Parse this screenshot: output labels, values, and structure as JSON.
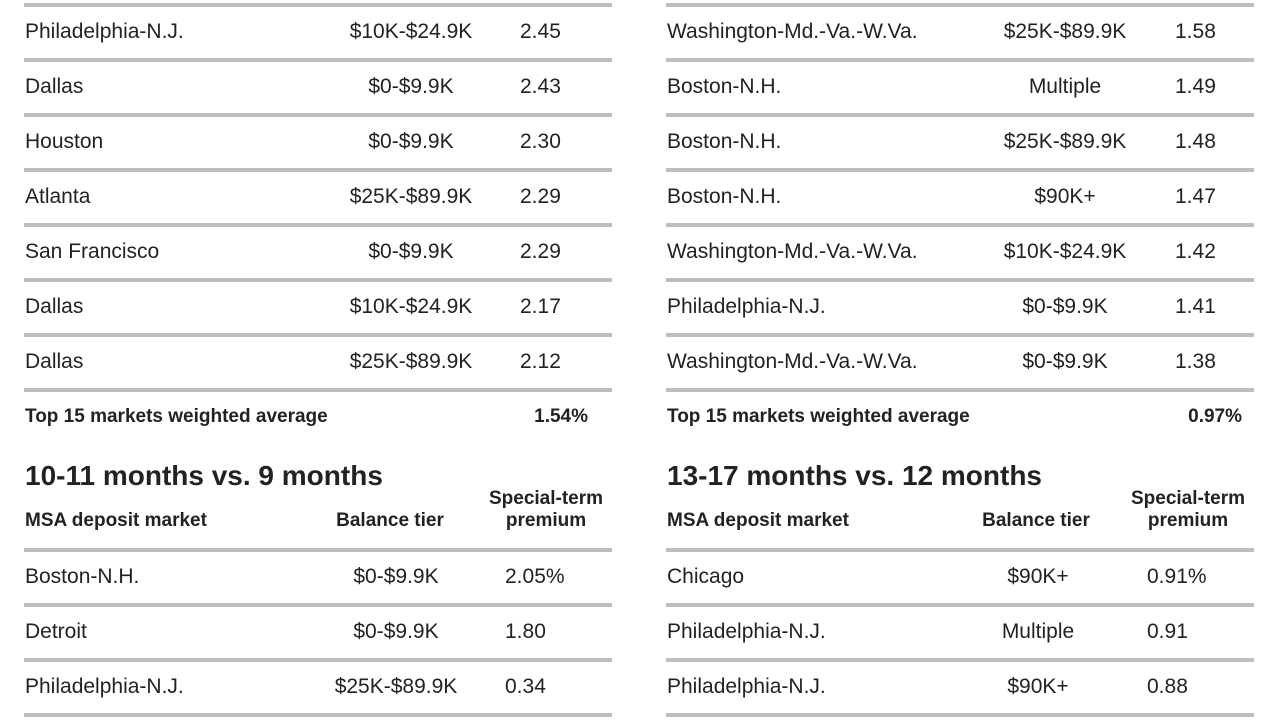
{
  "left": {
    "top_rows": [
      [
        "Philadelphia-N.J.",
        "$10K-$24.9K",
        "2.45"
      ],
      [
        "Dallas",
        "$0-$9.9K",
        "2.43"
      ],
      [
        "Houston",
        "$0-$9.9K",
        "2.30"
      ],
      [
        "Atlanta",
        "$25K-$89.9K",
        "2.29"
      ],
      [
        "San Francisco",
        "$0-$9.9K",
        "2.29"
      ],
      [
        "Dallas",
        "$10K-$24.9K",
        "2.17"
      ],
      [
        "Dallas",
        "$25K-$89.9K",
        "2.12"
      ]
    ],
    "summary": {
      "label": "Top 15 markets weighted average",
      "value": "1.54%"
    },
    "section": {
      "title": "10-11 months vs. 9 months",
      "headers": [
        "MSA deposit market",
        "Balance tier",
        "Special-term premium"
      ],
      "rows": [
        [
          "Boston-N.H.",
          "$0-$9.9K",
          "2.05%"
        ],
        [
          "Detroit",
          "$0-$9.9K",
          "1.80"
        ],
        [
          "Philadelphia-N.J.",
          "$25K-$89.9K",
          "0.34"
        ]
      ]
    }
  },
  "right": {
    "top_rows": [
      [
        "Washington-Md.-Va.-W.Va.",
        "$25K-$89.9K",
        "1.58"
      ],
      [
        "Boston-N.H.",
        "Multiple",
        "1.49"
      ],
      [
        "Boston-N.H.",
        "$25K-$89.9K",
        "1.48"
      ],
      [
        "Boston-N.H.",
        "$90K+",
        "1.47"
      ],
      [
        "Washington-Md.-Va.-W.Va.",
        "$10K-$24.9K",
        "1.42"
      ],
      [
        "Philadelphia-N.J.",
        "$0-$9.9K",
        "1.41"
      ],
      [
        "Washington-Md.-Va.-W.Va.",
        "$0-$9.9K",
        "1.38"
      ]
    ],
    "summary": {
      "label": "Top 15 markets weighted average",
      "value": "0.97%"
    },
    "section": {
      "title": "13-17 months vs. 12 months",
      "headers": [
        "MSA deposit market",
        "Balance tier",
        "Special-term premium"
      ],
      "rows": [
        [
          "Chicago",
          "$90K+",
          "0.91%"
        ],
        [
          "Philadelphia-N.J.",
          "Multiple",
          "0.91"
        ],
        [
          "Philadelphia-N.J.",
          "$90K+",
          "0.88"
        ]
      ]
    }
  }
}
